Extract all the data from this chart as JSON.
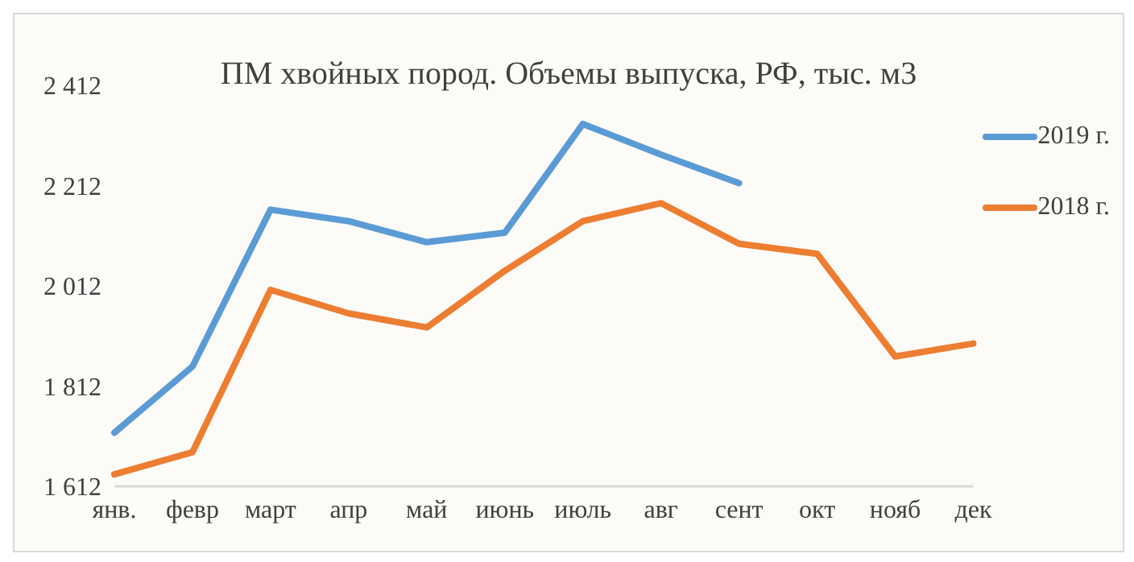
{
  "chart_data": {
    "type": "line",
    "title": "ПМ хвойных пород. Объемы выпуска, РФ, тыс. м3",
    "categories": [
      "янв.",
      "февр",
      "март",
      "апр",
      "май",
      "июнь",
      "июль",
      "авг",
      "сент",
      "окт",
      "нояб",
      "дек"
    ],
    "series": [
      {
        "name": "2019 г.",
        "color": "#5b9bd5",
        "values": [
          1719,
          1851,
          2164,
          2141,
          2099,
          2118,
          2335,
          2274,
          2217,
          null,
          null,
          null
        ]
      },
      {
        "name": "2018 г.",
        "color": "#ed7d31",
        "values": [
          1636,
          1680,
          2004,
          1957,
          1929,
          2042,
          2141,
          2177,
          2096,
          2076,
          1871,
          1897
        ]
      }
    ],
    "ylim": [
      1612,
      2412
    ],
    "yticks": [
      {
        "value": 1612,
        "label": "1 612"
      },
      {
        "value": 1812,
        "label": "1 812"
      },
      {
        "value": 2012,
        "label": "2 012"
      },
      {
        "value": 2212,
        "label": "2 212"
      },
      {
        "value": 2412,
        "label": "2 412"
      }
    ],
    "grid": false,
    "legend": "top right",
    "marker": "none",
    "line_style": "solid"
  }
}
